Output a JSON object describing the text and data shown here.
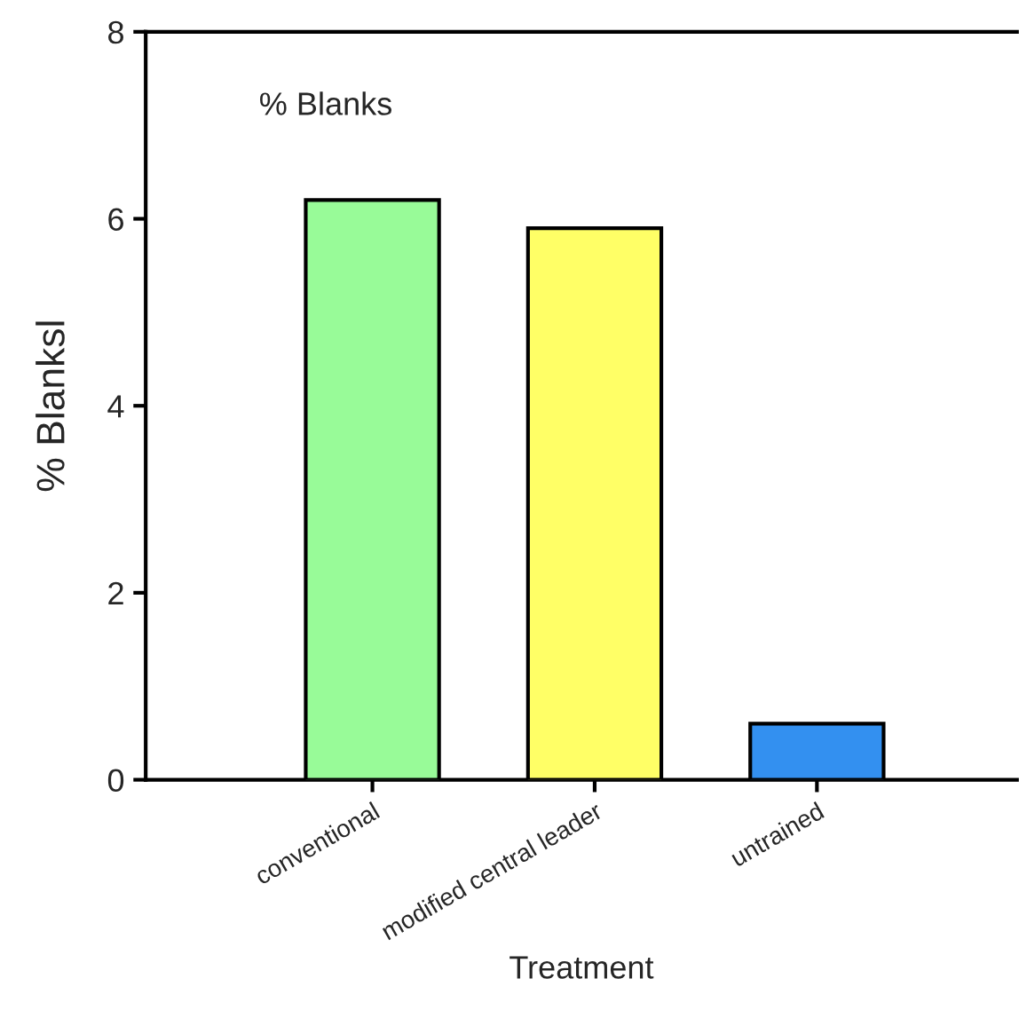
{
  "chart_data": {
    "type": "bar",
    "categories": [
      "conventional",
      "modified central leader",
      "untrained"
    ],
    "values": [
      6.2,
      5.9,
      0.6
    ],
    "colors": [
      "#98fb98",
      "#ffff66",
      "#3390f0"
    ],
    "xlabel": "Treatment",
    "ylabel": "% Blanksl",
    "annotations": [
      "% Blanks"
    ],
    "ylim": [
      0,
      8
    ],
    "yticks": [
      0,
      2,
      4,
      6,
      8
    ],
    "grid": false,
    "legend": false
  }
}
